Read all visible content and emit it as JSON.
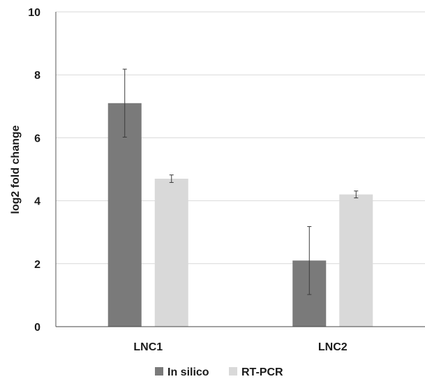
{
  "chart_data": {
    "type": "bar",
    "title": "",
    "xlabel": "",
    "ylabel": "log2 fold change",
    "categories": [
      "LNC1",
      "LNC2"
    ],
    "series": [
      {
        "name": "In silico",
        "color": "#7a7a7a",
        "values": [
          7.1,
          2.1
        ],
        "errors": [
          1.08,
          1.08
        ]
      },
      {
        "name": "RT-PCR",
        "color": "#d9d9d9",
        "values": [
          4.7,
          4.2
        ],
        "errors": [
          0.12,
          0.11
        ]
      }
    ],
    "ylim": [
      0,
      10
    ],
    "yticks": [
      "0",
      "2",
      "4",
      "6",
      "8",
      "10"
    ],
    "grid": true,
    "legend_position": "bottom"
  }
}
